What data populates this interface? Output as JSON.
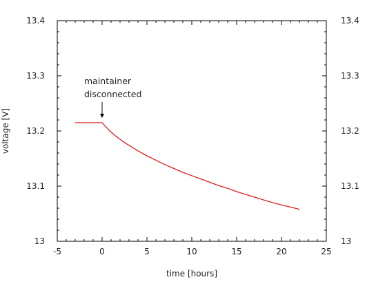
{
  "chart_data": {
    "type": "line",
    "title": "",
    "xlabel": "time [hours]",
    "ylabel": "voltage [V]",
    "xlim": [
      -5,
      25
    ],
    "ylim": [
      13.0,
      13.4
    ],
    "xticks": [
      -5,
      0,
      5,
      10,
      15,
      20,
      25
    ],
    "yticks": [
      13.0,
      13.1,
      13.2,
      13.3,
      13.4
    ],
    "ytick_labels": [
      "13",
      "13.1",
      "13.2",
      "13.3",
      "13.4"
    ],
    "grid": false,
    "legend": "none",
    "series": [
      {
        "color": "#e31a1c",
        "x": [
          -3,
          -2,
          -1,
          0,
          0.5,
          1,
          1.5,
          2,
          2.5,
          3,
          4,
          5,
          6,
          7,
          8,
          9,
          10,
          11,
          12,
          13,
          14,
          15,
          16,
          17,
          18,
          19,
          20,
          21,
          22
        ],
        "y": [
          13.215,
          13.215,
          13.215,
          13.215,
          13.206,
          13.198,
          13.191,
          13.185,
          13.179,
          13.174,
          13.164,
          13.155,
          13.147,
          13.139,
          13.132,
          13.125,
          13.119,
          13.113,
          13.107,
          13.101,
          13.096,
          13.09,
          13.085,
          13.08,
          13.075,
          13.07,
          13.066,
          13.062,
          13.058
        ]
      }
    ],
    "annotations": [
      {
        "text_line1": "maintainer",
        "text_line2": "disconnected",
        "x": 0,
        "y": 13.215
      }
    ]
  }
}
